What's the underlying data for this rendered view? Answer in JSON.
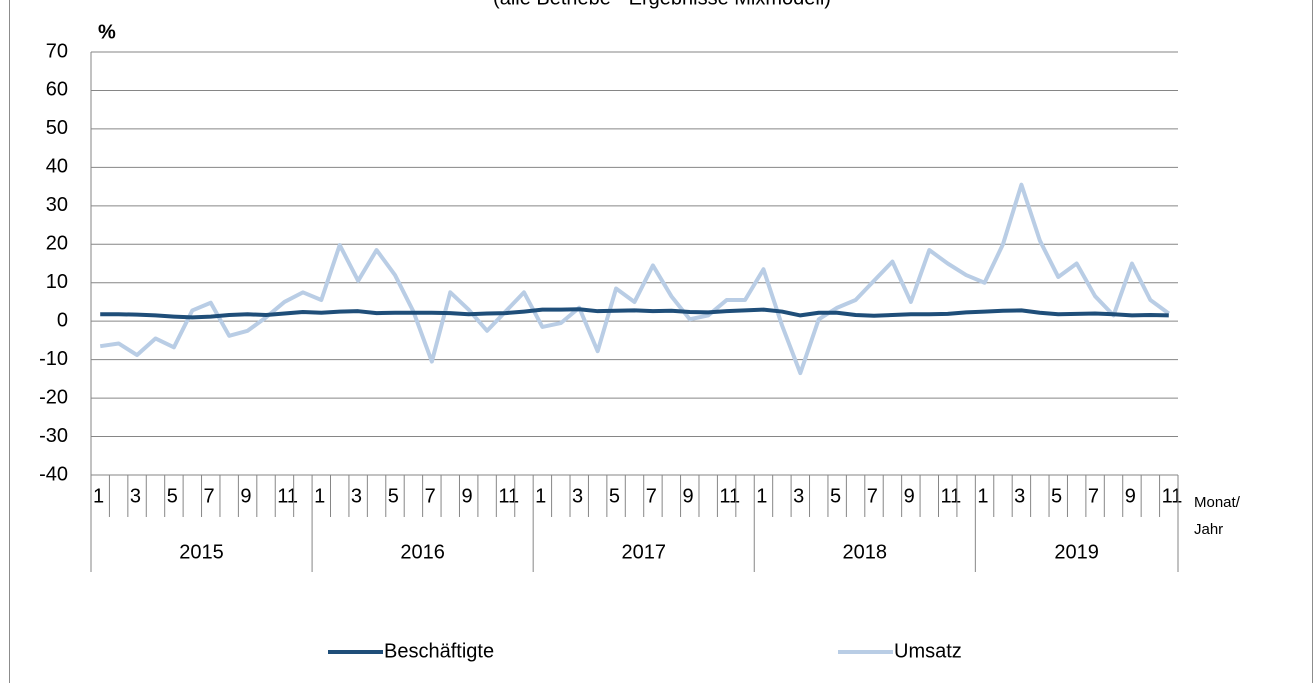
{
  "chart_data": {
    "type": "line",
    "subtitle": "(alle Betriebe - Ergebnisse Mixmodell)",
    "y_unit": "%",
    "x_label": [
      "Monat/",
      "Jahr"
    ],
    "categories": [
      "1",
      null,
      "3",
      null,
      "5",
      null,
      "7",
      null,
      "9",
      null,
      "11",
      null,
      "1",
      null,
      "3",
      null,
      "5",
      null,
      "7",
      null,
      "9",
      null,
      "11",
      null,
      "1",
      null,
      "3",
      null,
      "5",
      null,
      "7",
      null,
      "9",
      null,
      "11",
      null,
      "1",
      null,
      "3",
      null,
      "5",
      null,
      "7",
      null,
      "9",
      null,
      "11",
      null,
      "1",
      null,
      "3",
      null,
      "5",
      null,
      "7",
      null,
      "9",
      null,
      "11"
    ],
    "years": [
      "2015",
      "2016",
      "2017",
      "2018",
      "2019"
    ],
    "series": [
      {
        "name": "Beschäftigte",
        "color": "#1f4e79",
        "values": [
          1.8,
          1.8,
          1.7,
          1.5,
          1.2,
          1.0,
          1.2,
          1.6,
          1.8,
          1.6,
          2.0,
          2.4,
          2.2,
          2.5,
          2.6,
          2.1,
          2.2,
          2.2,
          2.2,
          2.1,
          1.8,
          2.0,
          2.1,
          2.5,
          3.0,
          3.0,
          3.1,
          2.6,
          2.7,
          2.8,
          2.6,
          2.7,
          2.4,
          2.3,
          2.6,
          2.8,
          3.0,
          2.5,
          1.5,
          2.2,
          2.2,
          1.6,
          1.4,
          1.6,
          1.8,
          1.8,
          1.9,
          2.3,
          2.5,
          2.7,
          2.8,
          2.2,
          1.8,
          1.9,
          2.0,
          1.8,
          1.5,
          1.6,
          1.5
        ]
      },
      {
        "name": "Umsatz",
        "color": "#b9cde5",
        "values": [
          -6.5,
          -5.8,
          -8.8,
          -4.5,
          -6.8,
          2.8,
          4.8,
          -3.8,
          -2.5,
          1.0,
          5.0,
          7.5,
          5.5,
          19.8,
          10.5,
          18.5,
          12,
          2.5,
          -10.5,
          7.5,
          3,
          -2.5,
          2.5,
          7.5,
          -1.5,
          -0.5,
          3.5,
          -7.8,
          8.5,
          5,
          14.5,
          6.5,
          0.5,
          1.5,
          5.5,
          5.5,
          13.5,
          -1,
          -13.5,
          0.5,
          3.5,
          5.5,
          10.5,
          15.5,
          5,
          18.5,
          15,
          12,
          10,
          20,
          35.5,
          21,
          11.5,
          15,
          6.5,
          1.5,
          15,
          5.5,
          2
        ]
      }
    ],
    "ylim": [
      -40,
      70
    ],
    "yticks": [
      -40,
      -30,
      -20,
      -10,
      0,
      10,
      20,
      30,
      40,
      50,
      60,
      70
    ],
    "grid": true,
    "legend": "bottom"
  }
}
